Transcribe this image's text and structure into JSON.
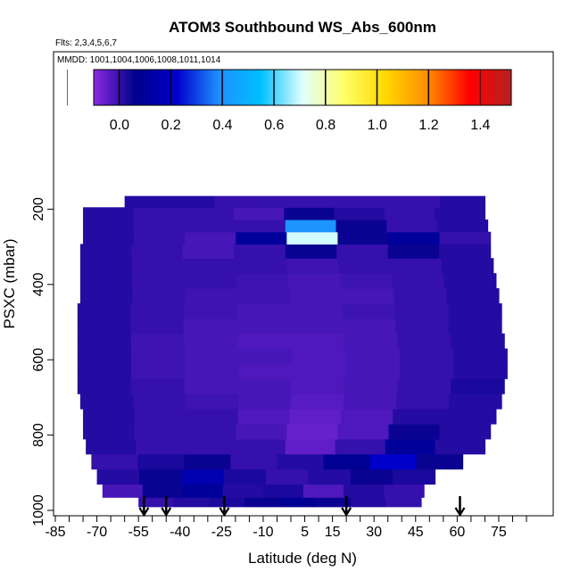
{
  "chart_data": {
    "type": "heatmap",
    "title": "ATOM3 Southbound WS_Abs_600nm",
    "flights_note": "Flts: 2,3,4,5,6,7",
    "dates_note": "MMDD: 1001,1004,1006,1008,1011,1014",
    "xlabel": "Latitude (deg N)",
    "ylabel": "PSXC (mbar)",
    "xlim": [
      -85,
      85
    ],
    "ylim": [
      1000,
      0
    ],
    "x_ticks": [
      -85,
      -70,
      -55,
      -40,
      -25,
      -10,
      5,
      15,
      30,
      45,
      60,
      75
    ],
    "y_ticks": [
      200,
      400,
      600,
      800,
      1000
    ],
    "colorbar": {
      "ticks": [
        0.0,
        0.2,
        0.4,
        0.6,
        0.8,
        1.0,
        1.2,
        1.4
      ],
      "tick_labels": [
        "0.0",
        "0.2",
        "0.4",
        "0.6",
        "0.8",
        "1.0",
        "1.2",
        "1.4"
      ],
      "range": [
        -0.1,
        1.52
      ],
      "colors": [
        "#8a2be2",
        "#00008b",
        "#0000cd",
        "#1e90ff",
        "#00bfff",
        "#e0ffff",
        "#ffff66",
        "#ffd700",
        "#ff8c00",
        "#ff0000",
        "#b22222"
      ]
    },
    "flight_markers_lat": [
      -53,
      -45,
      -24,
      20,
      61
    ],
    "series": [
      {
        "pressure_mbar": [
          980,
          950,
          910,
          870,
          830,
          790,
          750,
          710,
          670,
          630,
          590,
          550,
          510,
          470,
          430,
          390,
          350,
          310,
          275,
          245,
          210,
          180
        ],
        "lat_min": [
          -55,
          -68,
          -70,
          -72,
          -74,
          -75,
          -75,
          -76,
          -77,
          -77,
          -77,
          -77,
          -77,
          -77,
          -76,
          -76,
          -76,
          -76,
          -75,
          -75,
          -75,
          -60
        ],
        "lat_max": [
          47,
          48,
          52,
          62,
          70,
          72,
          74,
          76,
          77,
          78,
          78,
          77,
          76,
          76,
          75,
          74,
          73,
          72,
          72,
          71,
          70,
          70
        ],
        "values": [
          [
            0.0,
            0.02,
            0.03,
            0.05,
            0.08,
            0.05,
            0.02,
            0.0
          ],
          [
            -0.02,
            0.05,
            0.1,
            0.02,
            0.03,
            -0.03,
            0.02,
            0.0
          ],
          [
            0.02,
            0.05,
            0.15,
            0.03,
            0.0,
            0.02,
            0.05,
            0.03
          ],
          [
            0.0,
            0.03,
            0.05,
            0.0,
            0.02,
            0.08,
            0.22,
            0.05
          ],
          [
            0.02,
            0.0,
            0.0,
            0.0,
            -0.05,
            0.0,
            0.1,
            0.02
          ],
          [
            0.02,
            0.0,
            0.0,
            -0.02,
            -0.06,
            -0.03,
            0.05,
            0.02
          ],
          [
            0.02,
            0.0,
            0.0,
            -0.03,
            -0.05,
            -0.03,
            0.02,
            0.02
          ],
          [
            0.02,
            0.0,
            -0.01,
            -0.02,
            -0.04,
            -0.02,
            0.0,
            0.02
          ],
          [
            0.02,
            0.0,
            -0.02,
            -0.02,
            -0.03,
            -0.02,
            0.0,
            0.03
          ],
          [
            0.02,
            -0.01,
            -0.02,
            -0.03,
            -0.03,
            -0.02,
            0.0,
            0.02
          ],
          [
            0.02,
            -0.01,
            -0.02,
            -0.02,
            -0.03,
            -0.02,
            0.0,
            0.02
          ],
          [
            0.02,
            -0.01,
            -0.02,
            -0.03,
            -0.03,
            -0.02,
            0.0,
            0.02
          ],
          [
            0.02,
            0.0,
            -0.02,
            -0.02,
            -0.02,
            -0.02,
            0.0,
            0.02
          ],
          [
            0.02,
            0.0,
            -0.01,
            -0.02,
            -0.02,
            -0.01,
            0.0,
            0.02
          ],
          [
            0.02,
            0.0,
            -0.01,
            -0.01,
            -0.02,
            -0.02,
            0.0,
            0.02
          ],
          [
            0.02,
            0.0,
            0.0,
            -0.01,
            -0.02,
            -0.01,
            0.0,
            0.02
          ],
          [
            0.02,
            0.0,
            0.0,
            0.0,
            -0.01,
            0.0,
            0.0,
            0.02
          ],
          [
            0.02,
            0.0,
            -0.02,
            0.0,
            0.05,
            0.0,
            0.05,
            0.02
          ],
          [
            0.02,
            0.0,
            -0.02,
            0.1,
            0.7,
            0.05,
            0.1,
            0.0
          ],
          [
            0.02,
            0.0,
            0.0,
            0.0,
            0.4,
            0.05,
            0.0,
            0.02
          ],
          [
            0.02,
            0.0,
            0.0,
            -0.02,
            0.05,
            0.02,
            0.0,
            0.02
          ],
          [
            0.02,
            0.02,
            0.0,
            0.0,
            0.0,
            0.0,
            0.0,
            0.02
          ]
        ]
      }
    ]
  }
}
